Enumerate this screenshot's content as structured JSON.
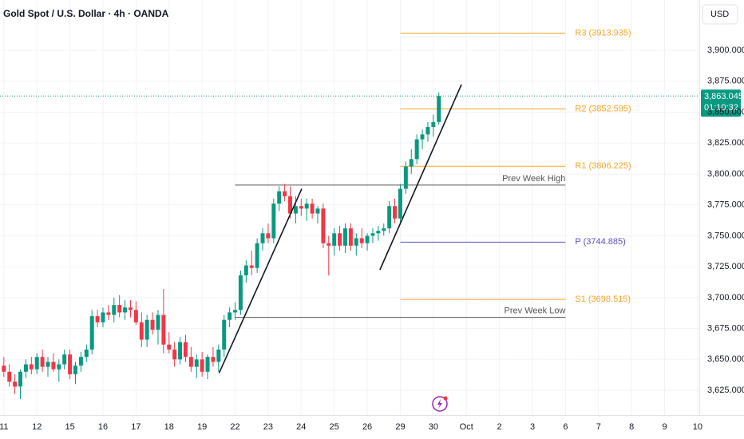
{
  "chart_data": {
    "type": "candlestick",
    "title": "Gold Spot / U.S. Dollar · 4h · OANDA",
    "currency": "USD",
    "up_color": "#089981",
    "down_color": "#f23645",
    "open": [
      3645,
      3640,
      3632,
      3628,
      3640,
      3646,
      3642,
      3652,
      3644,
      3648,
      3642,
      3646,
      3654,
      3638,
      3645,
      3652,
      3658,
      3685,
      3680,
      3688,
      3686,
      3694,
      3688,
      3692,
      3690,
      3680,
      3666,
      3682,
      3674,
      3686,
      3662,
      3658,
      3650,
      3664,
      3652,
      3644,
      3650,
      3640,
      3652,
      3648,
      3658,
      3682,
      3688,
      3690,
      3718,
      3726,
      3724,
      3744,
      3752,
      3748,
      3776,
      3786,
      3782,
      3768,
      3774,
      3772,
      3776,
      3768,
      3772,
      3744,
      3742,
      3752,
      3742,
      3756,
      3742,
      3748,
      3744,
      3750,
      3752,
      3754,
      3756,
      3774,
      3764,
      3788,
      3806,
      3812,
      3828,
      3832,
      3838,
      3842
    ],
    "high": [
      3652,
      3646,
      3638,
      3642,
      3650,
      3652,
      3655,
      3658,
      3652,
      3655,
      3650,
      3658,
      3658,
      3648,
      3656,
      3662,
      3690,
      3690,
      3692,
      3694,
      3700,
      3702,
      3698,
      3698,
      3697,
      3688,
      3686,
      3688,
      3690,
      3707,
      3672,
      3664,
      3668,
      3670,
      3660,
      3654,
      3656,
      3654,
      3660,
      3662,
      3686,
      3692,
      3696,
      3722,
      3730,
      3738,
      3748,
      3756,
      3760,
      3780,
      3790,
      3792,
      3790,
      3782,
      3780,
      3780,
      3780,
      3774,
      3776,
      3750,
      3756,
      3758,
      3760,
      3760,
      3752,
      3756,
      3752,
      3756,
      3758,
      3760,
      3778,
      3780,
      3792,
      3810,
      3820,
      3832,
      3836,
      3842,
      3848,
      3866
    ],
    "low": [
      3636,
      3628,
      3622,
      3618,
      3635,
      3638,
      3638,
      3640,
      3636,
      3640,
      3632,
      3642,
      3634,
      3630,
      3640,
      3648,
      3654,
      3676,
      3676,
      3682,
      3680,
      3684,
      3682,
      3684,
      3678,
      3660,
      3660,
      3670,
      3662,
      3655,
      3655,
      3644,
      3646,
      3648,
      3640,
      3635,
      3636,
      3634,
      3644,
      3640,
      3652,
      3676,
      3682,
      3686,
      3712,
      3718,
      3720,
      3738,
      3744,
      3744,
      3770,
      3778,
      3764,
      3760,
      3766,
      3762,
      3764,
      3760,
      3740,
      3718,
      3734,
      3738,
      3736,
      3738,
      3734,
      3740,
      3738,
      3744,
      3746,
      3750,
      3752,
      3760,
      3760,
      3784,
      3800,
      3808,
      3820,
      3826,
      3830,
      3840
    ],
    "close": [
      3640,
      3632,
      3628,
      3640,
      3646,
      3642,
      3652,
      3644,
      3648,
      3642,
      3646,
      3654,
      3638,
      3645,
      3652,
      3658,
      3685,
      3680,
      3688,
      3686,
      3694,
      3688,
      3692,
      3690,
      3680,
      3666,
      3682,
      3674,
      3686,
      3662,
      3658,
      3650,
      3664,
      3652,
      3644,
      3650,
      3640,
      3652,
      3648,
      3658,
      3682,
      3688,
      3690,
      3718,
      3726,
      3724,
      3744,
      3752,
      3748,
      3776,
      3786,
      3782,
      3768,
      3774,
      3772,
      3776,
      3768,
      3772,
      3744,
      3742,
      3752,
      3742,
      3756,
      3742,
      3748,
      3744,
      3750,
      3752,
      3754,
      3756,
      3774,
      3764,
      3788,
      3806,
      3812,
      3828,
      3832,
      3838,
      3842,
      3863.045
    ],
    "xlim": [
      -0.7,
      126.3
    ],
    "xticks": [
      {
        "value": 0,
        "label": "11"
      },
      {
        "value": 6,
        "label": "12"
      },
      {
        "value": 12,
        "label": "15"
      },
      {
        "value": 18,
        "label": "16"
      },
      {
        "value": 24,
        "label": "17"
      },
      {
        "value": 30,
        "label": "18"
      },
      {
        "value": 36,
        "label": "19"
      },
      {
        "value": 42,
        "label": "22"
      },
      {
        "value": 48,
        "label": "23"
      },
      {
        "value": 54,
        "label": "24"
      },
      {
        "value": 60,
        "label": "25"
      },
      {
        "value": 66,
        "label": "26"
      },
      {
        "value": 72,
        "label": "29"
      },
      {
        "value": 78,
        "label": "30"
      },
      {
        "value": 84,
        "label": "Oct"
      },
      {
        "value": 90,
        "label": "2"
      },
      {
        "value": 96,
        "label": "3"
      },
      {
        "value": 102,
        "label": "6"
      },
      {
        "value": 108,
        "label": "7"
      },
      {
        "value": 114,
        "label": "8"
      },
      {
        "value": 120,
        "label": "9"
      },
      {
        "value": 126,
        "label": "10"
      }
    ],
    "ylim": [
      3605,
      3940.7
    ],
    "yticks": [
      {
        "value": 3625,
        "label": "3,625.000"
      },
      {
        "value": 3650,
        "label": "3,650.000"
      },
      {
        "value": 3675,
        "label": "3,675.000"
      },
      {
        "value": 3700,
        "label": "3,700.000"
      },
      {
        "value": 3725,
        "label": "3,725.000"
      },
      {
        "value": 3750,
        "label": "3,750.000"
      },
      {
        "value": 3775,
        "label": "3,775.000"
      },
      {
        "value": 3800,
        "label": "3,800.000"
      },
      {
        "value": 3825,
        "label": "3,825.000"
      },
      {
        "value": 3850,
        "label": "3,850.000"
      },
      {
        "value": 3875,
        "label": "3,875.000"
      },
      {
        "value": 3900,
        "label": "3,900.000"
      }
    ],
    "grid": true,
    "last_price": {
      "value": 3863.045,
      "label": "3,863.045"
    },
    "countdown": "01:10:32",
    "levels": [
      {
        "label": "R3 (3913.935)",
        "value": 3913.935,
        "color": "#f5a623",
        "kind": "pivot",
        "span": [
          72,
          102
        ]
      },
      {
        "label": "R2 (3852.595)",
        "value": 3852.595,
        "color": "#f5a623",
        "kind": "pivot",
        "span": [
          72,
          102
        ]
      },
      {
        "label": "R1 (3806.225)",
        "value": 3806.225,
        "color": "#f5a623",
        "kind": "pivot",
        "span": [
          72,
          102
        ]
      },
      {
        "label": "P (3744.885)",
        "value": 3744.885,
        "color": "#5e4fc4",
        "kind": "pivot",
        "span": [
          72,
          102
        ]
      },
      {
        "label": "S1 (3698.515)",
        "value": 3698.515,
        "color": "#f5a623",
        "kind": "pivot",
        "span": [
          72,
          102
        ]
      },
      {
        "label": "Prev Week High",
        "value": 3791,
        "color": "#555555",
        "kind": "week",
        "span": [
          42,
          102
        ]
      },
      {
        "label": "Prev Week Low",
        "value": 3684,
        "color": "#555555",
        "kind": "week",
        "span": [
          42,
          102
        ]
      }
    ],
    "trendlines": [
      {
        "x": [
          39.1,
          54.1
        ],
        "y": [
          3639,
          3788
        ]
      },
      {
        "x": [
          68.3,
          83.1
        ],
        "y": [
          3722.5,
          3872.3
        ]
      }
    ]
  }
}
